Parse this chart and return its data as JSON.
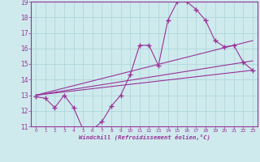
{
  "xlabel": "Windchill (Refroidissement éolien,°C)",
  "background_color": "#ceeaed",
  "grid_color": "#aad4d8",
  "line_color": "#993399",
  "xlim": [
    -0.5,
    23.5
  ],
  "ylim": [
    11,
    19
  ],
  "yticks": [
    11,
    12,
    13,
    14,
    15,
    16,
    17,
    18,
    19
  ],
  "xticks": [
    0,
    1,
    2,
    3,
    4,
    5,
    6,
    7,
    8,
    9,
    10,
    11,
    12,
    13,
    14,
    15,
    16,
    17,
    18,
    19,
    20,
    21,
    22,
    23
  ],
  "line1_x": [
    0,
    1,
    2,
    3,
    4,
    5,
    6,
    7,
    8,
    9,
    10,
    11,
    12,
    13,
    14,
    15,
    16,
    17,
    18,
    19,
    20,
    21,
    22,
    23
  ],
  "line1_y": [
    12.9,
    12.8,
    12.2,
    13.0,
    12.2,
    10.8,
    10.8,
    11.3,
    12.3,
    13.0,
    14.3,
    16.2,
    16.2,
    14.9,
    17.8,
    19.0,
    19.0,
    18.5,
    17.8,
    16.5,
    16.1,
    16.2,
    15.1,
    14.6
  ],
  "line2_x": [
    0,
    23
  ],
  "line2_y": [
    13.0,
    16.5
  ],
  "line3_x": [
    0,
    23
  ],
  "line3_y": [
    13.0,
    15.2
  ],
  "line4_x": [
    0,
    23
  ],
  "line4_y": [
    13.0,
    14.6
  ]
}
